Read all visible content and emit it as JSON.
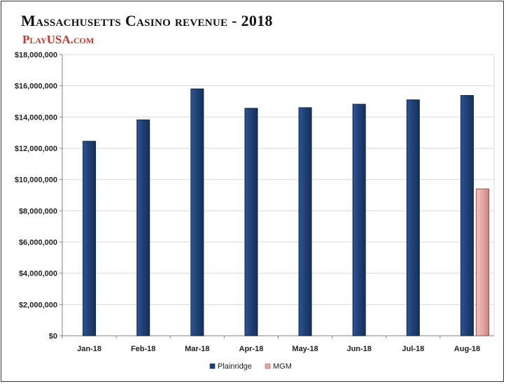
{
  "title": "Massachusetts Casino revenue - 2018",
  "brand": "PlayUSA.com",
  "colors": {
    "plainridge": "#1f3f73",
    "mgm": "#e8a7a3",
    "grid": "#d9d9d9",
    "axis": "#808080"
  },
  "chart_data": {
    "type": "bar",
    "title": "Massachusetts Casino revenue - 2018",
    "xlabel": "",
    "ylabel": "",
    "categories": [
      "Jan-18",
      "Feb-18",
      "Mar-18",
      "Apr-18",
      "May-18",
      "Jun-18",
      "Jul-18",
      "Aug-18"
    ],
    "series": [
      {
        "name": "Plainridge",
        "values": [
          12450000,
          13820000,
          15800000,
          14560000,
          14600000,
          14820000,
          15100000,
          15380000
        ]
      },
      {
        "name": "MGM",
        "values": [
          null,
          null,
          null,
          null,
          null,
          null,
          null,
          9400000
        ]
      }
    ],
    "ylim": [
      0,
      18000000
    ],
    "yticks": [
      "$0",
      "$2,000,000",
      "$4,000,000",
      "$6,000,000",
      "$8,000,000",
      "$10,000,000",
      "$12,000,000",
      "$14,000,000",
      "$16,000,000",
      "$18,000,000"
    ],
    "grid": true,
    "legend": "bottom"
  }
}
